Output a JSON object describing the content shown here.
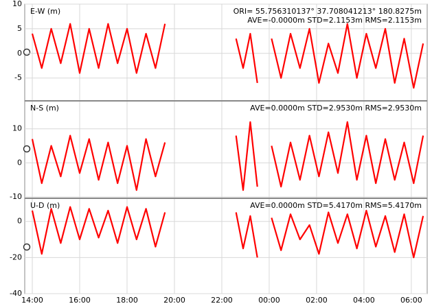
{
  "chart_data": [
    {
      "type": "line",
      "title": "E-W (m)",
      "annotations": [
        "ORI= 55.756310137°  37.708041213° 180.8275m",
        "AVE=-0.0000m STD=2.1153m RMS=2.1153m"
      ],
      "x": [
        14.0,
        14.4,
        14.8,
        15.2,
        15.6,
        16.0,
        16.4,
        16.8,
        17.2,
        17.6,
        18.0,
        18.4,
        18.8,
        19.2,
        19.6,
        21.0,
        22.6,
        22.9,
        23.2,
        23.5,
        23.8,
        24.1,
        24.5,
        24.9,
        25.3,
        25.7,
        26.1,
        26.5,
        26.9,
        27.3,
        27.7,
        28.1,
        28.5,
        28.9,
        29.3,
        29.7,
        30.1,
        30.5
      ],
      "series": [
        {
          "color": "#ff0000",
          "values": [
            4,
            -3,
            5,
            -2,
            6,
            -4,
            5,
            -3,
            6,
            -2,
            5,
            -4,
            4,
            -3,
            6,
            null,
            3,
            -3,
            4,
            -6,
            null,
            3,
            -5,
            4,
            -3,
            5,
            -6,
            2,
            -4,
            6,
            -5,
            4,
            -3,
            5,
            -6,
            3,
            -7,
            2
          ]
        }
      ],
      "xlim": [
        13.68,
        30.67
      ],
      "ylim": [
        -9.5,
        10
      ],
      "yticks": [
        10,
        5,
        0,
        -5
      ],
      "grid": true
    },
    {
      "type": "line",
      "title": "N-S (m)",
      "annotations": [
        "AVE=0.0000m STD=2.9530m RMS=2.9530m"
      ],
      "x": [
        14.0,
        14.4,
        14.8,
        15.2,
        15.6,
        16.0,
        16.4,
        16.8,
        17.2,
        17.6,
        18.0,
        18.4,
        18.8,
        19.2,
        19.6,
        21.0,
        22.6,
        22.9,
        23.2,
        23.5,
        23.8,
        24.1,
        24.5,
        24.9,
        25.3,
        25.7,
        26.1,
        26.5,
        26.9,
        27.3,
        27.7,
        28.1,
        28.5,
        28.9,
        29.3,
        29.7,
        30.1,
        30.5
      ],
      "series": [
        {
          "color": "#ff0000",
          "values": [
            7,
            -6,
            5,
            -4,
            8,
            -3,
            7,
            -5,
            6,
            -6,
            5,
            -8,
            7,
            -4,
            6,
            null,
            8,
            -8,
            12,
            -7,
            null,
            5,
            -7,
            6,
            -5,
            8,
            -4,
            9,
            -3,
            12,
            -5,
            8,
            -6,
            7,
            -5,
            6,
            -6,
            8
          ]
        }
      ],
      "xlim": [
        13.68,
        30.67
      ],
      "ylim": [
        -10.2,
        18.2
      ],
      "yticks": [
        10,
        0,
        -10
      ],
      "grid": true
    },
    {
      "type": "line",
      "title": "U-D (m)",
      "annotations": [
        "AVE=0.0000m STD=5.4170m RMS=5.4170m"
      ],
      "x": [
        14.0,
        14.4,
        14.8,
        15.2,
        15.6,
        16.0,
        16.4,
        16.8,
        17.2,
        17.6,
        18.0,
        18.4,
        18.8,
        19.2,
        19.6,
        21.0,
        22.6,
        22.9,
        23.2,
        23.5,
        23.8,
        24.1,
        24.5,
        24.9,
        25.3,
        25.7,
        26.1,
        26.5,
        26.9,
        27.3,
        27.7,
        28.1,
        28.5,
        28.9,
        29.3,
        29.7,
        30.1,
        30.5
      ],
      "series": [
        {
          "color": "#ff0000",
          "values": [
            6,
            -18,
            7,
            -12,
            8,
            -10,
            7,
            -9,
            6,
            -12,
            8,
            -10,
            7,
            -14,
            5,
            null,
            5,
            -15,
            3,
            -20,
            null,
            2,
            -16,
            4,
            -10,
            -2,
            -18,
            5,
            -12,
            4,
            -15,
            6,
            -14,
            3,
            -17,
            4,
            -20,
            3
          ]
        }
      ],
      "xlim": [
        13.68,
        30.67
      ],
      "ylim": [
        -40,
        12.8
      ],
      "yticks": [
        0,
        -20,
        -40
      ],
      "grid": true,
      "xticks": [
        {
          "value": 14,
          "label": "14:00"
        },
        {
          "value": 16,
          "label": "16:00"
        },
        {
          "value": 18,
          "label": "18:00"
        },
        {
          "value": 20,
          "label": "20:00"
        },
        {
          "value": 22,
          "label": "22:00"
        },
        {
          "value": 24,
          "label": "00:00"
        },
        {
          "value": 26,
          "label": "02:00"
        },
        {
          "value": 28,
          "label": "04:00"
        },
        {
          "value": 30,
          "label": "06:00"
        }
      ]
    }
  ]
}
